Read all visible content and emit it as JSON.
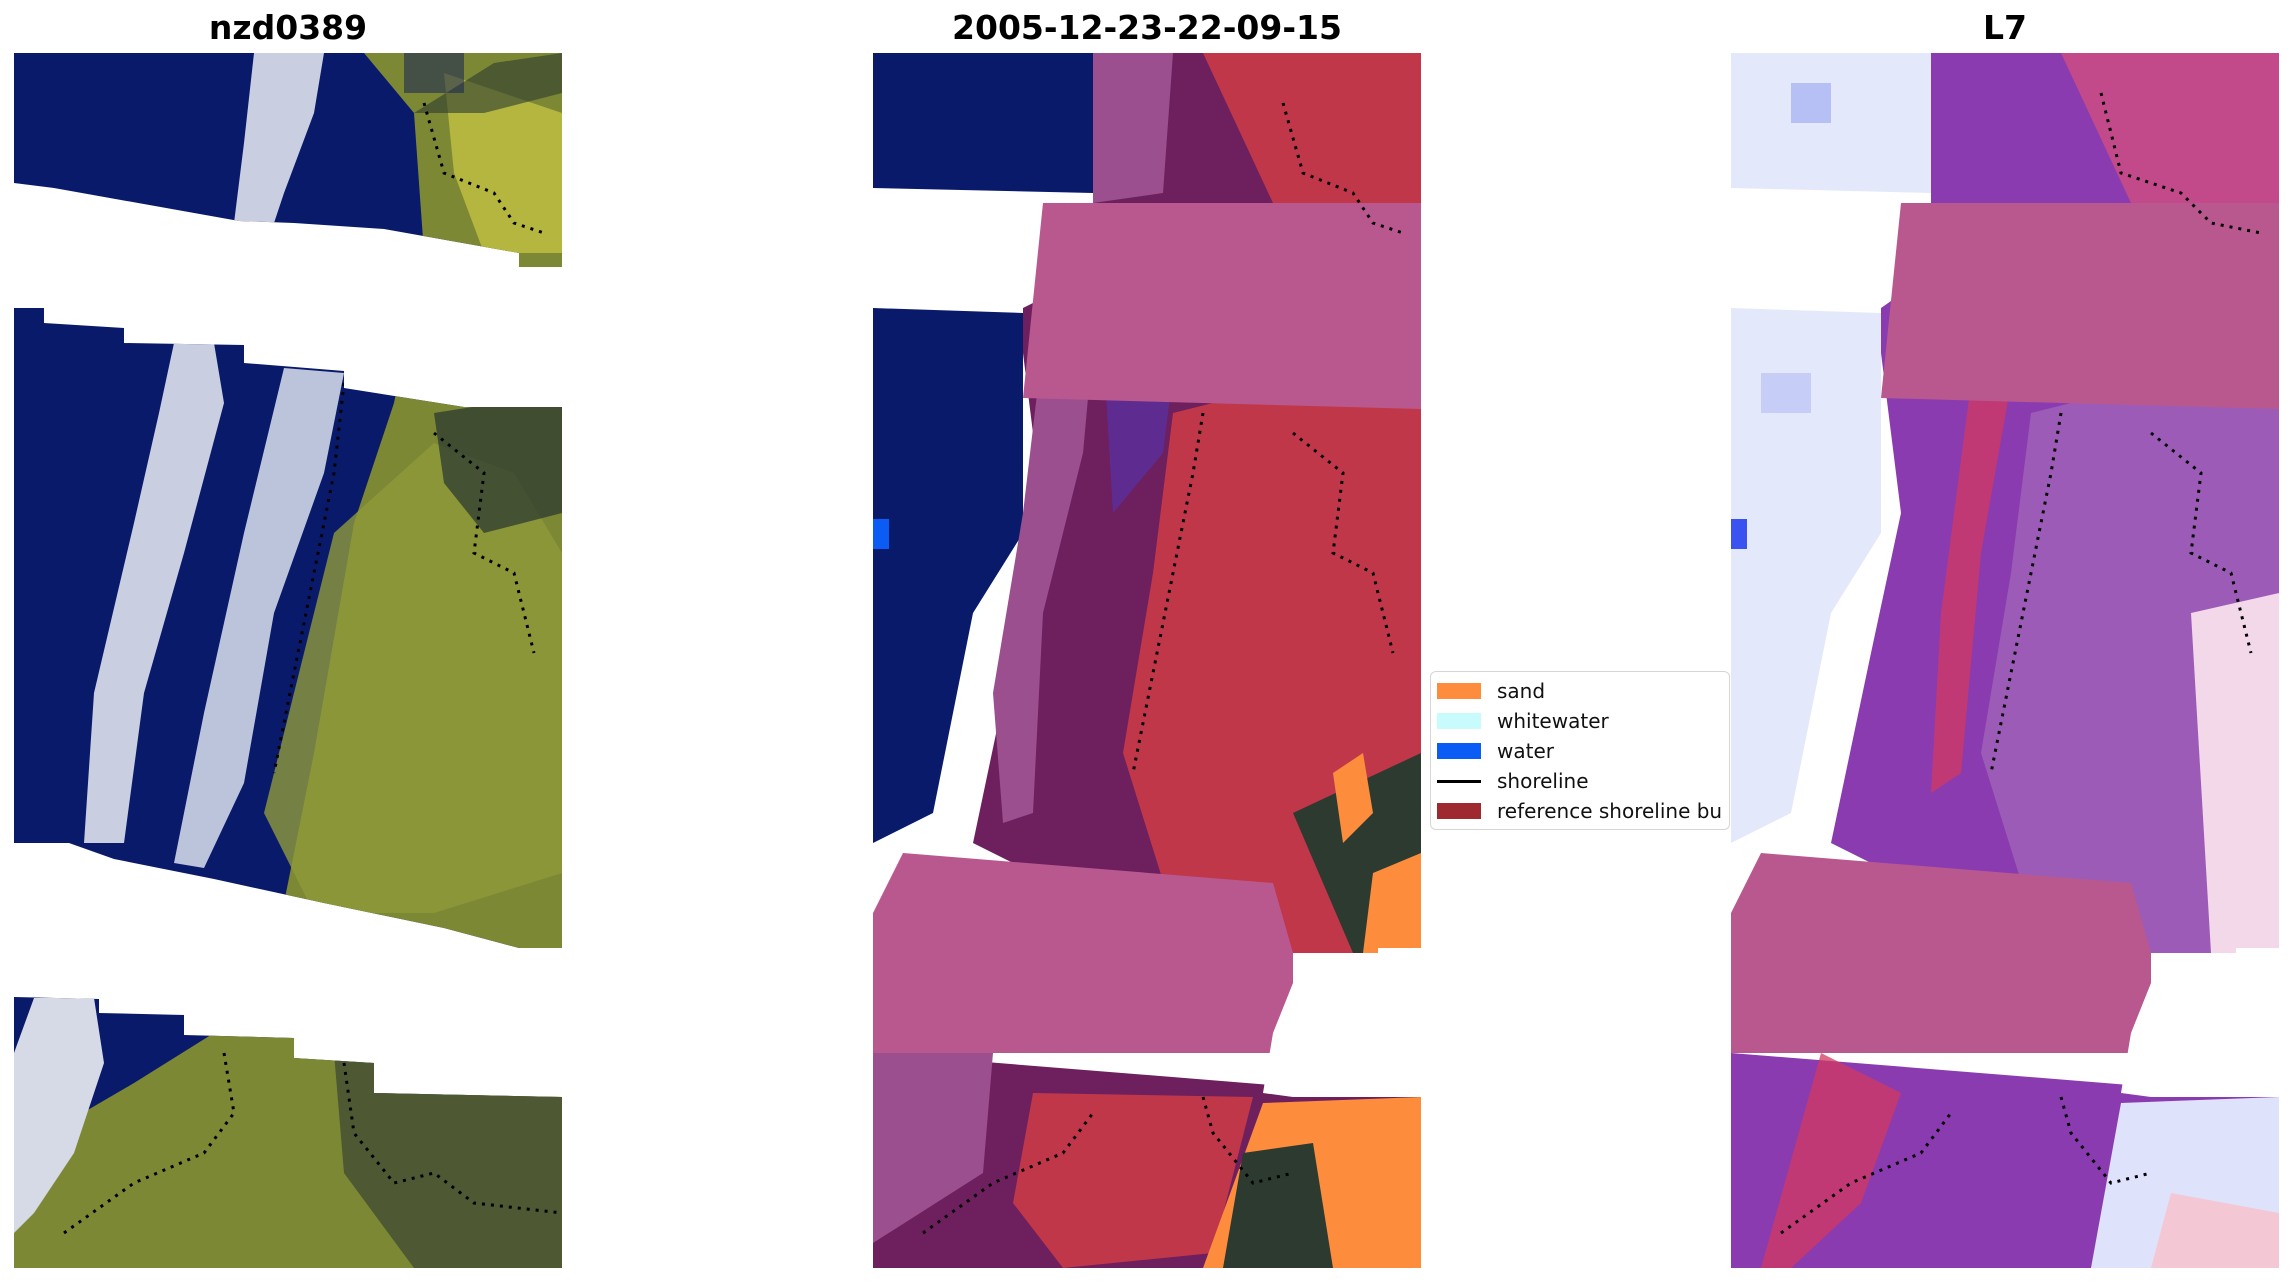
{
  "panels": {
    "left": {
      "title": "nzd0389"
    },
    "middle": {
      "title": "2005-12-23-22-09-15"
    },
    "right": {
      "title": "L7"
    }
  },
  "legend": {
    "items": [
      {
        "label": "sand",
        "kind": "patch",
        "color": "#fd8c3c"
      },
      {
        "label": "whitewater",
        "kind": "patch",
        "color": "#c8fbfb"
      },
      {
        "label": "water",
        "kind": "patch",
        "color": "#0a5cf5"
      },
      {
        "label": "shoreline",
        "kind": "line",
        "color": "#000000"
      },
      {
        "label": "reference shoreline bu",
        "kind": "patch",
        "color": "#9e2a2f"
      }
    ]
  },
  "colors": {
    "ocean": "#0a1a6b",
    "surf": "#b9c2dc",
    "vegetation": "#8f9a3a",
    "dark_vegetation": "#2c3a30",
    "buffer_overlay": "#b9588f",
    "sand": "#fd8c3c",
    "water": "#0a5cf5",
    "index_ocean": "#e4e8fb",
    "index_land": "#8a3bb0",
    "index_shore": "#d23a60"
  }
}
